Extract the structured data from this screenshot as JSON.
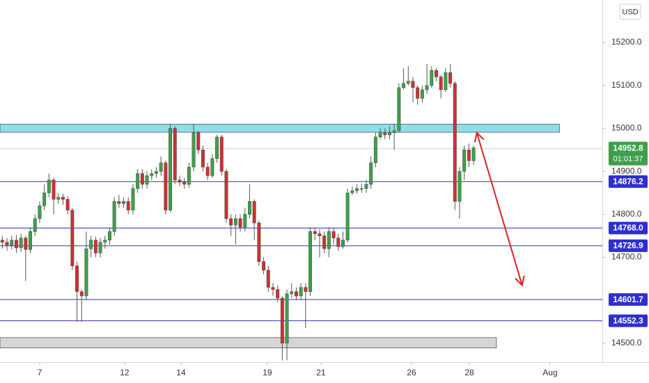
{
  "chart_data": {
    "type": "candlestick",
    "currency": "USD",
    "up_color": "#3ea04a",
    "down_color": "#d03030",
    "x": [
      0,
      1,
      2,
      3,
      4,
      5,
      6,
      7,
      8,
      9,
      10,
      11,
      12,
      13,
      14,
      15,
      16,
      17,
      18,
      19,
      20,
      21,
      22,
      23,
      24,
      25,
      26,
      27,
      28,
      29,
      30,
      31,
      32,
      33,
      34,
      35,
      36,
      37,
      38,
      39,
      40,
      41,
      42,
      43,
      44,
      45,
      46,
      47,
      48,
      49,
      50,
      51,
      52,
      53,
      54,
      55,
      56,
      57,
      58,
      59,
      60,
      61,
      62,
      63,
      64,
      65,
      66,
      67,
      68,
      69,
      70,
      71,
      72,
      73,
      74,
      75,
      76,
      77,
      78,
      79,
      80,
      81,
      82,
      83,
      84,
      85,
      86,
      87,
      88,
      89,
      90,
      91,
      92,
      93,
      94,
      95,
      96,
      97,
      98,
      99,
      100,
      101
    ],
    "open": [
      14740,
      14735,
      14728,
      14740,
      14722,
      14745,
      14718,
      14760,
      14790,
      14820,
      14850,
      14880,
      14835,
      14840,
      14835,
      14810,
      14680,
      14620,
      14610,
      14720,
      14740,
      14710,
      14735,
      14740,
      14760,
      14830,
      14825,
      14830,
      14810,
      14860,
      14895,
      14870,
      14890,
      14895,
      14900,
      14920,
      14810,
      15000,
      14880,
      14875,
      14870,
      14910,
      14990,
      14950,
      14910,
      14890,
      14930,
      14980,
      14900,
      14790,
      14775,
      14790,
      14770,
      14800,
      14830,
      14780,
      14690,
      14670,
      14630,
      14625,
      14605,
      14500,
      14615,
      14620,
      14610,
      14630,
      14620,
      14760,
      14755,
      14750,
      14720,
      14760,
      14745,
      14725,
      14740,
      14850,
      14855,
      14860,
      14860,
      14870,
      14920,
      14980,
      14990,
      14985,
      14990,
      14995,
      15095,
      15105,
      15110,
      15095,
      15070,
      15090,
      15100,
      15135,
      15120,
      15090,
      15130,
      15105,
      14830,
      14900,
      14950,
      14925
    ],
    "high": [
      14750,
      14745,
      14750,
      14752,
      14755,
      14750,
      14770,
      14800,
      14830,
      14870,
      14895,
      14885,
      14850,
      14848,
      14842,
      14815,
      14690,
      14625,
      14760,
      14750,
      14748,
      14745,
      14750,
      14770,
      14840,
      14845,
      14840,
      14840,
      14870,
      14905,
      14905,
      14900,
      14905,
      14910,
      14935,
      14925,
      15010,
      15005,
      14890,
      14885,
      14920,
      15010,
      14995,
      14960,
      14920,
      14940,
      14985,
      14985,
      14905,
      14800,
      14800,
      14800,
      14815,
      14870,
      14835,
      14785,
      14700,
      14680,
      14640,
      14635,
      14610,
      14625,
      14640,
      14630,
      14640,
      14640,
      14770,
      14770,
      14765,
      14760,
      14770,
      14770,
      14755,
      14760,
      14860,
      14865,
      14870,
      14872,
      14880,
      14935,
      14990,
      15000,
      15000,
      15005,
      15010,
      15105,
      15140,
      15145,
      15120,
      15100,
      15100,
      15150,
      15145,
      15140,
      15125,
      15140,
      15150,
      15110,
      14910,
      14960,
      14965,
      14960
    ],
    "low": [
      14720,
      14715,
      14718,
      14710,
      14712,
      14645,
      14710,
      14750,
      14780,
      14810,
      14840,
      14800,
      14825,
      14822,
      14800,
      14670,
      14550,
      14550,
      14600,
      14700,
      14700,
      14700,
      14720,
      14730,
      14750,
      14815,
      14815,
      14800,
      14800,
      14850,
      14860,
      14860,
      14880,
      14885,
      14890,
      14800,
      14805,
      14870,
      14865,
      14860,
      14862,
      14900,
      14940,
      14900,
      14880,
      14885,
      14920,
      14890,
      14780,
      14750,
      14730,
      14760,
      14760,
      14790,
      14740,
      14680,
      14660,
      14620,
      14610,
      14595,
      14460,
      14460,
      14605,
      14600,
      14600,
      14535,
      14610,
      14740,
      14700,
      14710,
      14700,
      14730,
      14715,
      14720,
      14735,
      14845,
      14848,
      14850,
      14850,
      14860,
      14910,
      14975,
      14975,
      14975,
      14950,
      14990,
      15090,
      15100,
      15060,
      15055,
      15060,
      15080,
      15095,
      15110,
      15070,
      15085,
      15095,
      14810,
      14790,
      14880,
      14910,
      14915
    ],
    "close": [
      14735,
      14728,
      14740,
      14722,
      14745,
      14718,
      14760,
      14790,
      14820,
      14850,
      14880,
      14835,
      14840,
      14835,
      14810,
      14680,
      14620,
      14610,
      14720,
      14740,
      14710,
      14735,
      14740,
      14760,
      14830,
      14825,
      14830,
      14810,
      14860,
      14895,
      14870,
      14890,
      14895,
      14900,
      14920,
      14810,
      15000,
      14880,
      14875,
      14870,
      14910,
      14990,
      14950,
      14910,
      14890,
      14930,
      14980,
      14900,
      14790,
      14775,
      14790,
      14770,
      14800,
      14830,
      14780,
      14690,
      14670,
      14630,
      14625,
      14605,
      14500,
      14615,
      14620,
      14610,
      14630,
      14620,
      14760,
      14755,
      14750,
      14720,
      14760,
      14745,
      14725,
      14740,
      14850,
      14855,
      14860,
      14860,
      14870,
      14920,
      14980,
      14990,
      14985,
      14990,
      14995,
      15095,
      15105,
      15110,
      15095,
      15070,
      15090,
      15100,
      15135,
      15120,
      15090,
      15130,
      15105,
      14830,
      14900,
      14950,
      14925,
      14955
    ],
    "xlim": [
      -0.5,
      128.6
    ],
    "xticks": [
      {
        "value": 8.0,
        "label": "7"
      },
      {
        "value": 26.2,
        "label": "12"
      },
      {
        "value": 38.3,
        "label": "14"
      },
      {
        "value": 56.8,
        "label": "19"
      },
      {
        "value": 68.3,
        "label": "21"
      },
      {
        "value": 87.7,
        "label": "26"
      },
      {
        "value": 100.1,
        "label": "28"
      },
      {
        "value": 117.4,
        "label": "Aug"
      }
    ],
    "ylim": [
      14456,
      15299
    ],
    "yticks": [
      {
        "value": 15200,
        "label": "15200.0"
      },
      {
        "value": 15100,
        "label": "15100.0"
      },
      {
        "value": 15000,
        "label": "15000.0"
      },
      {
        "value": 14900,
        "label": "14900.0"
      },
      {
        "value": 14800,
        "label": "14800.0"
      },
      {
        "value": 14700,
        "label": "14700.0"
      },
      {
        "value": 14500,
        "label": "14500.0"
      }
    ],
    "grid": false,
    "levels": [
      {
        "value": 14876.2,
        "label": "14876.2"
      },
      {
        "value": 14768.0,
        "label": "14768.0"
      },
      {
        "value": 14726.9,
        "label": "14726.9"
      },
      {
        "value": 14601.7,
        "label": "14601.7"
      },
      {
        "value": 14552.3,
        "label": "14552.3"
      }
    ],
    "level_color": "#2f2fd0",
    "last_price": 14952.8,
    "countdown": "01:01:37",
    "zones": [
      {
        "top": 15010,
        "bottom": 14991,
        "end": 119.4,
        "color": "#8fdcea"
      },
      {
        "top": 14513,
        "bottom": 14489,
        "end": 105.9,
        "color": "#d6d6d6"
      }
    ],
    "arrow": {
      "x": [
        101.7,
        111.4
      ],
      "y": [
        14990,
        14635
      ],
      "color": "#e02020"
    }
  }
}
